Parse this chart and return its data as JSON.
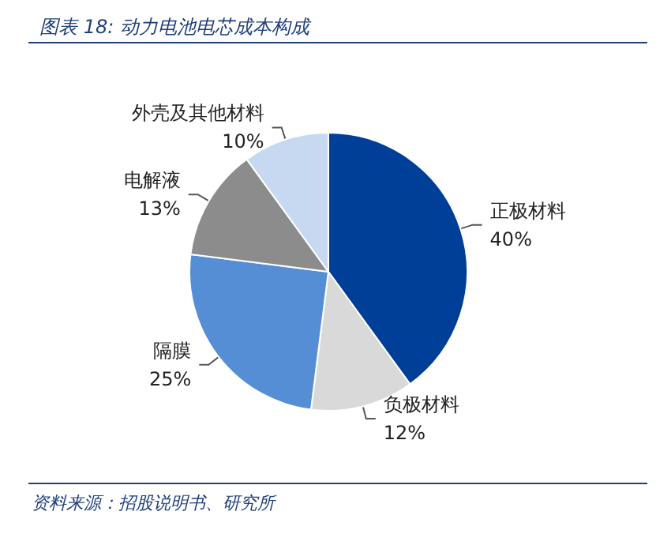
{
  "chart_data": {
    "type": "pie",
    "title": "图表 18: 动力电池电芯成本构成",
    "categories": [
      "正极材料",
      "负极材料",
      "隔膜",
      "电解液",
      "外壳及其他材料"
    ],
    "values": [
      40,
      12,
      25,
      13,
      10
    ],
    "value_labels": [
      "40%",
      "12%",
      "25%",
      "13%",
      "10%"
    ],
    "colors": [
      "#003f98",
      "#d9d9d9",
      "#558ed5",
      "#8c8c8c",
      "#c6d9f1"
    ],
    "legend": false,
    "annotations": [
      "资料来源：招股说明书、研究所"
    ]
  }
}
